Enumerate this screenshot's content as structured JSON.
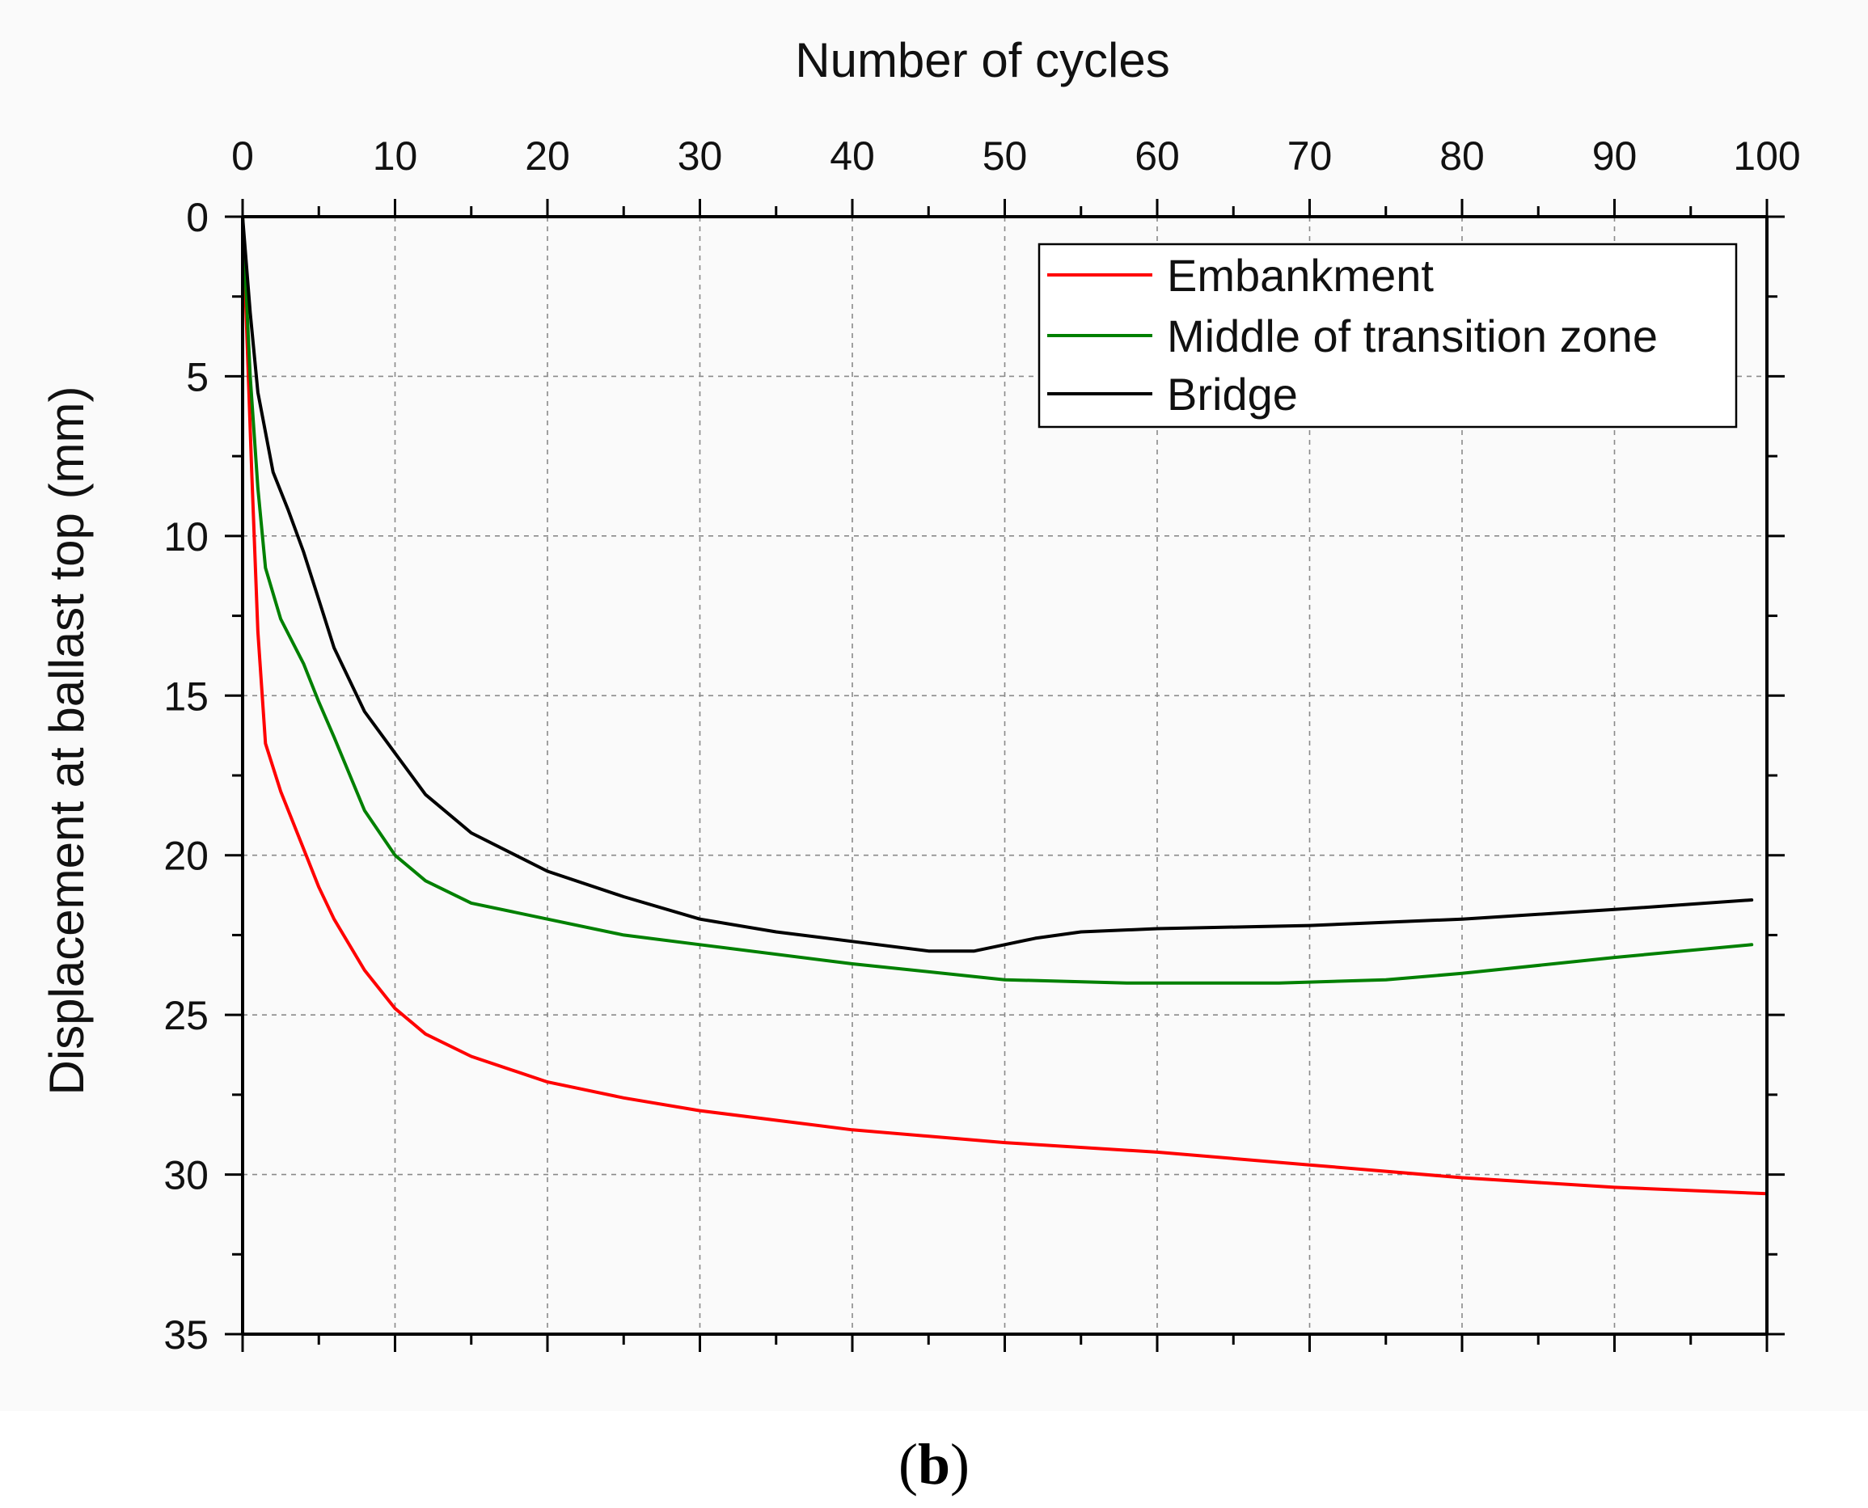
{
  "chart_data": {
    "type": "line",
    "title": "",
    "xlabel": "Number of cycles",
    "ylabel": "Displacement at ballast top (mm)",
    "xlim": [
      0,
      100
    ],
    "ylim": [
      0,
      35
    ],
    "y_reversed": true,
    "x_axis_position": "top",
    "x_ticks": [
      0,
      10,
      20,
      30,
      40,
      50,
      60,
      70,
      80,
      90,
      100
    ],
    "y_ticks": [
      0,
      5,
      10,
      15,
      20,
      25,
      30,
      35
    ],
    "grid": true,
    "legend_position": "top-right",
    "series": [
      {
        "name": "Embankment",
        "color": "#ff0000",
        "points": [
          [
            0,
            0
          ],
          [
            0.3,
            4
          ],
          [
            0.6,
            8
          ],
          [
            1,
            13
          ],
          [
            1.5,
            16.5
          ],
          [
            2.5,
            18
          ],
          [
            3.5,
            19.2
          ],
          [
            5,
            21
          ],
          [
            6,
            22
          ],
          [
            8,
            23.6
          ],
          [
            10,
            24.8
          ],
          [
            12,
            25.6
          ],
          [
            15,
            26.3
          ],
          [
            20,
            27.1
          ],
          [
            25,
            27.6
          ],
          [
            30,
            28
          ],
          [
            40,
            28.6
          ],
          [
            50,
            29
          ],
          [
            60,
            29.3
          ],
          [
            70,
            29.7
          ],
          [
            80,
            30.1
          ],
          [
            90,
            30.4
          ],
          [
            100,
            30.6
          ]
        ]
      },
      {
        "name": "Middle of transition zone",
        "color": "#008000",
        "points": [
          [
            0,
            0
          ],
          [
            0.5,
            5
          ],
          [
            1,
            8.5
          ],
          [
            1.5,
            11
          ],
          [
            2.5,
            12.6
          ],
          [
            4,
            14
          ],
          [
            5,
            15.2
          ],
          [
            6,
            16.3
          ],
          [
            8,
            18.6
          ],
          [
            10,
            20
          ],
          [
            12,
            20.8
          ],
          [
            15,
            21.5
          ],
          [
            20,
            22
          ],
          [
            25,
            22.5
          ],
          [
            30,
            22.8
          ],
          [
            40,
            23.4
          ],
          [
            50,
            23.9
          ],
          [
            58,
            24
          ],
          [
            68,
            24
          ],
          [
            75,
            23.9
          ],
          [
            80,
            23.7
          ],
          [
            90,
            23.2
          ],
          [
            99,
            22.8
          ]
        ]
      },
      {
        "name": "Bridge",
        "color": "#000000",
        "points": [
          [
            0,
            0
          ],
          [
            0.5,
            3
          ],
          [
            1,
            5.5
          ],
          [
            2,
            8
          ],
          [
            3,
            9.2
          ],
          [
            4,
            10.5
          ],
          [
            5,
            12
          ],
          [
            6,
            13.5
          ],
          [
            8,
            15.5
          ],
          [
            10,
            16.8
          ],
          [
            12,
            18.1
          ],
          [
            15,
            19.3
          ],
          [
            20,
            20.5
          ],
          [
            25,
            21.3
          ],
          [
            30,
            22
          ],
          [
            35,
            22.4
          ],
          [
            40,
            22.7
          ],
          [
            45,
            23
          ],
          [
            48,
            23
          ],
          [
            50,
            22.8
          ],
          [
            52,
            22.6
          ],
          [
            55,
            22.4
          ],
          [
            60,
            22.3
          ],
          [
            70,
            22.2
          ],
          [
            80,
            22
          ],
          [
            90,
            21.7
          ],
          [
            99,
            21.4
          ]
        ]
      }
    ]
  },
  "caption": {
    "open": "(",
    "label": "b",
    "close": ")"
  }
}
